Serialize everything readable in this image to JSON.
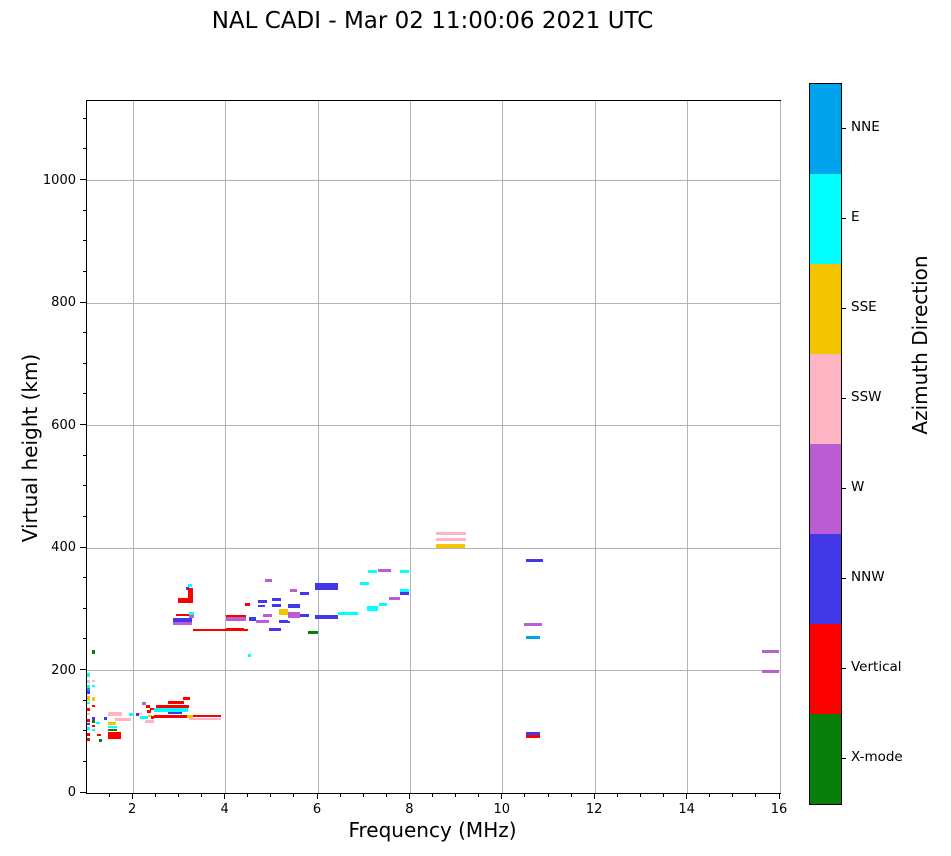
{
  "title": "NAL CADI - Mar 02 11:00:06 2021 UTC",
  "chart_data": {
    "type": "scatter",
    "title": "NAL CADI - Mar 02 11:00:06 2021 UTC",
    "xlabel": "Frequency (MHz)",
    "ylabel": "Virtual height (km)",
    "xlim": [
      1,
      16
    ],
    "ylim": [
      0,
      1130
    ],
    "x_major_ticks": [
      2,
      4,
      6,
      8,
      10,
      12,
      14,
      16
    ],
    "x_minor_step": 0.5,
    "y_major_ticks": [
      0,
      200,
      400,
      600,
      800,
      1000
    ],
    "y_minor_step": 50,
    "grid": true,
    "grid_color": "#b4b4b4",
    "colorbar": {
      "label": "Azimuth Direction",
      "categories": [
        {
          "key": "nne",
          "label": "NNE",
          "color": "#00a3ec"
        },
        {
          "key": "e",
          "label": "E",
          "color": "#00ffff"
        },
        {
          "key": "sse",
          "label": "SSE",
          "color": "#f5c400"
        },
        {
          "key": "ssw",
          "label": "SSW",
          "color": "#ffb4c4"
        },
        {
          "key": "w",
          "label": "W",
          "color": "#bb5cd3"
        },
        {
          "key": "nnw",
          "label": "NNW",
          "color": "#4338e8"
        },
        {
          "key": "vertical",
          "label": "Vertical",
          "color": "#fc0000"
        },
        {
          "key": "xmode",
          "label": "X-mode",
          "color": "#0a7e0a"
        }
      ]
    },
    "points_format": [
      "freq_mhz_start",
      "freq_mhz_end",
      "height_km_low",
      "height_km_high",
      "direction_key"
    ],
    "points": [
      [
        1.0,
        1.07,
        190,
        196,
        "e"
      ],
      [
        1.0,
        1.07,
        180,
        184,
        "ssw"
      ],
      [
        1.0,
        1.07,
        172,
        177,
        "e"
      ],
      [
        1.0,
        1.07,
        167,
        171,
        "nne"
      ],
      [
        1.0,
        1.07,
        162,
        166,
        "nnw"
      ],
      [
        1.0,
        1.07,
        150,
        158,
        "sse"
      ],
      [
        1.0,
        1.07,
        145,
        149,
        "e"
      ],
      [
        1.0,
        1.07,
        134,
        139,
        "vertical"
      ],
      [
        1.0,
        1.07,
        127,
        131,
        "ssw"
      ],
      [
        1.0,
        1.07,
        116,
        121,
        "vertical"
      ],
      [
        1.0,
        1.07,
        111,
        115,
        "nnw"
      ],
      [
        1.0,
        1.07,
        103,
        108,
        "e"
      ],
      [
        1.0,
        1.07,
        93,
        98,
        "vertical"
      ],
      [
        1.0,
        1.07,
        85,
        90,
        "vertical"
      ],
      [
        1.11,
        1.17,
        227,
        233,
        "xmode"
      ],
      [
        1.1,
        1.17,
        181,
        185,
        "ssw"
      ],
      [
        1.1,
        1.17,
        173,
        177,
        "e"
      ],
      [
        1.1,
        1.17,
        151,
        156,
        "sse"
      ],
      [
        1.1,
        1.17,
        140,
        144,
        "vertical"
      ],
      [
        1.1,
        1.17,
        120,
        124,
        "nnw"
      ],
      [
        1.1,
        1.17,
        115,
        119,
        "xmode"
      ],
      [
        1.1,
        1.17,
        107,
        111,
        "vertical"
      ],
      [
        1.1,
        1.17,
        101,
        105,
        "e"
      ],
      [
        1.2,
        1.28,
        112,
        116,
        "e"
      ],
      [
        1.22,
        1.3,
        93,
        97,
        "vertical"
      ],
      [
        1.25,
        1.32,
        84,
        88,
        "xmode"
      ],
      [
        1.37,
        1.43,
        120,
        124,
        "nnw"
      ],
      [
        1.45,
        1.75,
        125,
        132,
        "ssw"
      ],
      [
        1.6,
        1.95,
        118,
        123,
        "ssw"
      ],
      [
        1.9,
        2.0,
        126,
        131,
        "e"
      ],
      [
        1.45,
        1.63,
        111,
        116,
        "sse"
      ],
      [
        1.45,
        1.65,
        106,
        110,
        "e"
      ],
      [
        1.45,
        1.65,
        101,
        105,
        "xmode"
      ],
      [
        1.45,
        1.73,
        88,
        100,
        "vertical"
      ],
      [
        2.2,
        2.27,
        143,
        148,
        "w"
      ],
      [
        2.28,
        2.36,
        139,
        143,
        "vertical"
      ],
      [
        2.36,
        2.44,
        135,
        139,
        "vertical"
      ],
      [
        2.3,
        2.38,
        131,
        135,
        "vertical"
      ],
      [
        2.12,
        2.2,
        127,
        131,
        "ssw"
      ],
      [
        2.06,
        2.13,
        126,
        130,
        "nnw"
      ],
      [
        2.15,
        2.32,
        121,
        125,
        "e"
      ],
      [
        2.33,
        2.41,
        124,
        128,
        "sse"
      ],
      [
        2.26,
        2.46,
        115,
        120,
        "ssw"
      ],
      [
        2.38,
        2.46,
        121,
        125,
        "vertical"
      ],
      [
        2.75,
        3.1,
        146,
        150,
        "vertical"
      ],
      [
        3.08,
        3.22,
        152,
        157,
        "vertical"
      ],
      [
        2.5,
        3.2,
        139,
        144,
        "vertical"
      ],
      [
        2.45,
        3.18,
        133,
        138,
        "e"
      ],
      [
        2.75,
        3.05,
        129,
        133,
        "nnw"
      ],
      [
        2.45,
        3.2,
        122,
        128,
        "vertical"
      ],
      [
        3.17,
        3.3,
        122,
        128,
        "sse"
      ],
      [
        3.3,
        3.9,
        124,
        128,
        "vertical"
      ],
      [
        3.2,
        3.9,
        119,
        123,
        "ssw"
      ],
      [
        3.18,
        3.28,
        336,
        341,
        "e"
      ],
      [
        3.14,
        3.2,
        331,
        336,
        "nnw"
      ],
      [
        3.18,
        3.3,
        311,
        334,
        "vertical"
      ],
      [
        2.96,
        3.3,
        311,
        318,
        "vertical"
      ],
      [
        2.92,
        3.2,
        289,
        293,
        "vertical"
      ],
      [
        3.2,
        3.32,
        291,
        296,
        "e"
      ],
      [
        3.2,
        3.32,
        286,
        291,
        "w"
      ],
      [
        2.86,
        3.27,
        279,
        285,
        "nnw"
      ],
      [
        2.86,
        3.27,
        275,
        279,
        "w"
      ],
      [
        3.3,
        4.48,
        265,
        268,
        "vertical"
      ],
      [
        4.0,
        4.45,
        287,
        291,
        "vertical"
      ],
      [
        4.0,
        4.45,
        281,
        287,
        "w"
      ],
      [
        4.5,
        4.65,
        281,
        287,
        "nnw"
      ],
      [
        4.65,
        4.95,
        278,
        283,
        "w"
      ],
      [
        5.15,
        5.35,
        278,
        283,
        "nnw"
      ],
      [
        4.0,
        4.4,
        267,
        270,
        "vertical"
      ],
      [
        4.95,
        5.2,
        265,
        269,
        "nnw"
      ],
      [
        4.43,
        4.52,
        305,
        310,
        "vertical"
      ],
      [
        4.7,
        4.9,
        310,
        315,
        "nnw"
      ],
      [
        5.0,
        5.2,
        314,
        319,
        "nnw"
      ],
      [
        4.7,
        4.85,
        303,
        307,
        "nnw"
      ],
      [
        5.0,
        5.2,
        303,
        308,
        "nnw"
      ],
      [
        5.35,
        5.6,
        302,
        308,
        "nnw"
      ],
      [
        5.15,
        5.35,
        291,
        300,
        "sse"
      ],
      [
        4.8,
        5.0,
        288,
        293,
        "w"
      ],
      [
        5.35,
        5.6,
        286,
        296,
        "w"
      ],
      [
        5.4,
        5.55,
        329,
        333,
        "w"
      ],
      [
        4.85,
        5.0,
        345,
        349,
        "w"
      ],
      [
        4.48,
        4.55,
        222,
        227,
        "e"
      ],
      [
        5.6,
        5.8,
        287,
        293,
        "nnw"
      ],
      [
        5.2,
        5.4,
        277,
        281,
        "nnw"
      ],
      [
        5.6,
        5.8,
        324,
        328,
        "nnw"
      ],
      [
        5.93,
        6.43,
        332,
        343,
        "nnw"
      ],
      [
        5.93,
        6.43,
        284,
        291,
        "nnw"
      ],
      [
        6.43,
        6.87,
        290,
        295,
        "e"
      ],
      [
        5.78,
        6.0,
        260,
        264,
        "xmode"
      ],
      [
        6.9,
        7.1,
        339,
        344,
        "e"
      ],
      [
        7.08,
        7.28,
        359,
        364,
        "e"
      ],
      [
        7.3,
        7.58,
        361,
        366,
        "w"
      ],
      [
        7.77,
        7.98,
        359,
        364,
        "e"
      ],
      [
        7.05,
        7.3,
        298,
        305,
        "e"
      ],
      [
        7.32,
        7.5,
        306,
        310,
        "e"
      ],
      [
        7.53,
        7.78,
        315,
        320,
        "w"
      ],
      [
        7.77,
        7.98,
        328,
        333,
        "e"
      ],
      [
        7.77,
        7.98,
        323,
        328,
        "nnw"
      ],
      [
        8.55,
        9.2,
        422,
        426,
        "ssw"
      ],
      [
        8.55,
        9.2,
        412,
        416,
        "ssw"
      ],
      [
        8.55,
        9.18,
        400,
        406,
        "sse"
      ],
      [
        10.5,
        10.87,
        377,
        382,
        "nnw"
      ],
      [
        10.45,
        10.85,
        272,
        277,
        "w"
      ],
      [
        10.5,
        10.8,
        251,
        256,
        "nne"
      ],
      [
        10.5,
        10.8,
        95,
        99,
        "nnw"
      ],
      [
        10.5,
        10.8,
        90,
        95,
        "vertical"
      ],
      [
        15.6,
        15.98,
        229,
        234,
        "w"
      ],
      [
        15.6,
        15.98,
        196,
        201,
        "w"
      ]
    ]
  }
}
